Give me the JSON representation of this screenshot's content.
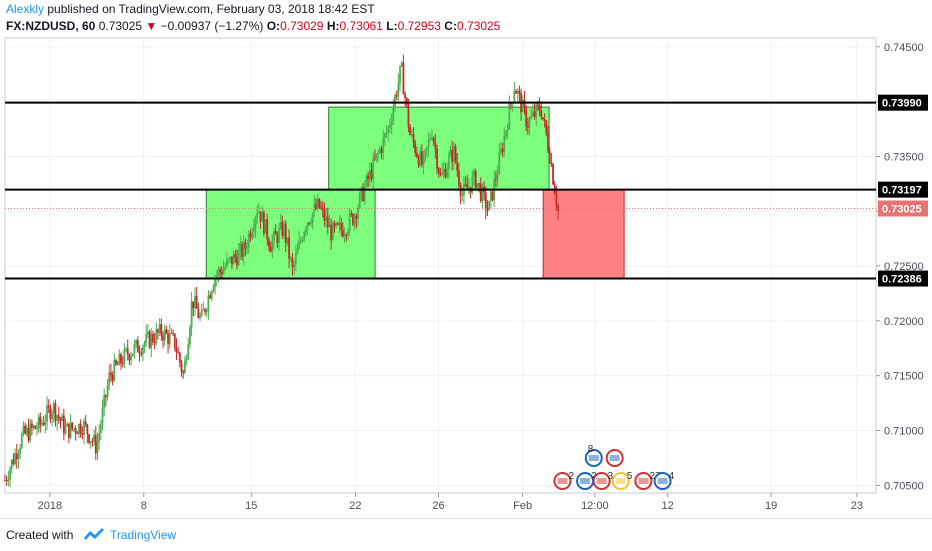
{
  "header": {
    "author": "Alexkly",
    "published_text": "published on TradingView.com, February 03, 2018 18:42 EST",
    "symbol": "FX:NZDUSD, 60",
    "last": "0.73025",
    "change": "−0.00937 (−1.27%)",
    "o_label": "O:",
    "o_value": "0.73029",
    "h_label": "H:",
    "h_value": "0.73061",
    "l_label": "L:",
    "l_value": "0.72953",
    "c_label": "C:",
    "c_value": "0.73025"
  },
  "footer": {
    "created_with": "Created with",
    "brand": "TradingView"
  },
  "colors": {
    "up_candle": "#4caf50",
    "down_candle": "#c62828",
    "green_zone": "#66ff66",
    "red_zone": "#ff6b6b",
    "price_line": "#e57373",
    "logo": "#2196f3"
  },
  "chart_data": {
    "type": "candlestick",
    "symbol": "FX:NZDUSD",
    "interval": "60",
    "y_range": [
      0.7043,
      0.7458
    ],
    "y_ticks": [
      "0.74500",
      "0.74000",
      "0.73500",
      "0.73000",
      "0.72500",
      "0.72000",
      "0.71500",
      "0.71000",
      "0.70500"
    ],
    "y_tick_values": [
      0.745,
      0.74,
      0.735,
      0.73,
      0.725,
      0.72,
      0.715,
      0.71,
      0.705
    ],
    "x_ticks": [
      "2018",
      "8",
      "15",
      "22",
      "26",
      "Feb",
      "12:00",
      "12",
      "19",
      "23"
    ],
    "x_tick_pos": [
      0.0515,
      0.1593,
      0.2827,
      0.4023,
      0.4977,
      0.5943,
      0.6772,
      0.7608,
      0.8796,
      0.9781
    ],
    "horizontal_levels": [
      {
        "value": 0.7399,
        "label": "0.73990"
      },
      {
        "value": 0.73197,
        "label": "0.73197"
      },
      {
        "value": 0.72386,
        "label": "0.72386"
      }
    ],
    "last_price": {
      "value": 0.73025,
      "label": "0.73025"
    },
    "zones": [
      {
        "color": "green",
        "x_start": 0.2311,
        "x_end": 0.4249,
        "y_low": 0.72386,
        "y_high": 0.73197
      },
      {
        "color": "green",
        "x_start": 0.3716,
        "x_end": 0.6247,
        "y_low": 0.73197,
        "y_high": 0.7395
      },
      {
        "color": "red",
        "x_start": 0.6179,
        "x_end": 0.7108,
        "y_low": 0.72386,
        "y_high": 0.73197
      }
    ],
    "price_path": [
      [
        0.0,
        0.7055
      ],
      [
        0.02,
        0.7095
      ],
      [
        0.04,
        0.7105
      ],
      [
        0.055,
        0.7122
      ],
      [
        0.07,
        0.71
      ],
      [
        0.09,
        0.7105
      ],
      [
        0.105,
        0.7085
      ],
      [
        0.12,
        0.715
      ],
      [
        0.14,
        0.717
      ],
      [
        0.16,
        0.718
      ],
      [
        0.18,
        0.719
      ],
      [
        0.195,
        0.718
      ],
      [
        0.205,
        0.715
      ],
      [
        0.215,
        0.722
      ],
      [
        0.225,
        0.72
      ],
      [
        0.24,
        0.724
      ],
      [
        0.26,
        0.7255
      ],
      [
        0.275,
        0.7265
      ],
      [
        0.29,
        0.7305
      ],
      [
        0.305,
        0.727
      ],
      [
        0.32,
        0.7285
      ],
      [
        0.33,
        0.7245
      ],
      [
        0.345,
        0.729
      ],
      [
        0.36,
        0.7305
      ],
      [
        0.375,
        0.728
      ],
      [
        0.39,
        0.7285
      ],
      [
        0.4,
        0.7295
      ],
      [
        0.41,
        0.7315
      ],
      [
        0.425,
        0.7345
      ],
      [
        0.44,
        0.7375
      ],
      [
        0.455,
        0.743
      ],
      [
        0.465,
        0.737
      ],
      [
        0.48,
        0.734
      ],
      [
        0.49,
        0.7375
      ],
      [
        0.5,
        0.733
      ],
      [
        0.515,
        0.7355
      ],
      [
        0.525,
        0.7315
      ],
      [
        0.54,
        0.733
      ],
      [
        0.555,
        0.73
      ],
      [
        0.57,
        0.7355
      ],
      [
        0.585,
        0.7415
      ],
      [
        0.6,
        0.738
      ],
      [
        0.615,
        0.7395
      ],
      [
        0.625,
        0.7355
      ],
      [
        0.635,
        0.73
      ]
    ],
    "event_markers": [
      "2",
      "2",
      "3",
      "5",
      "27",
      "4",
      "8"
    ]
  }
}
